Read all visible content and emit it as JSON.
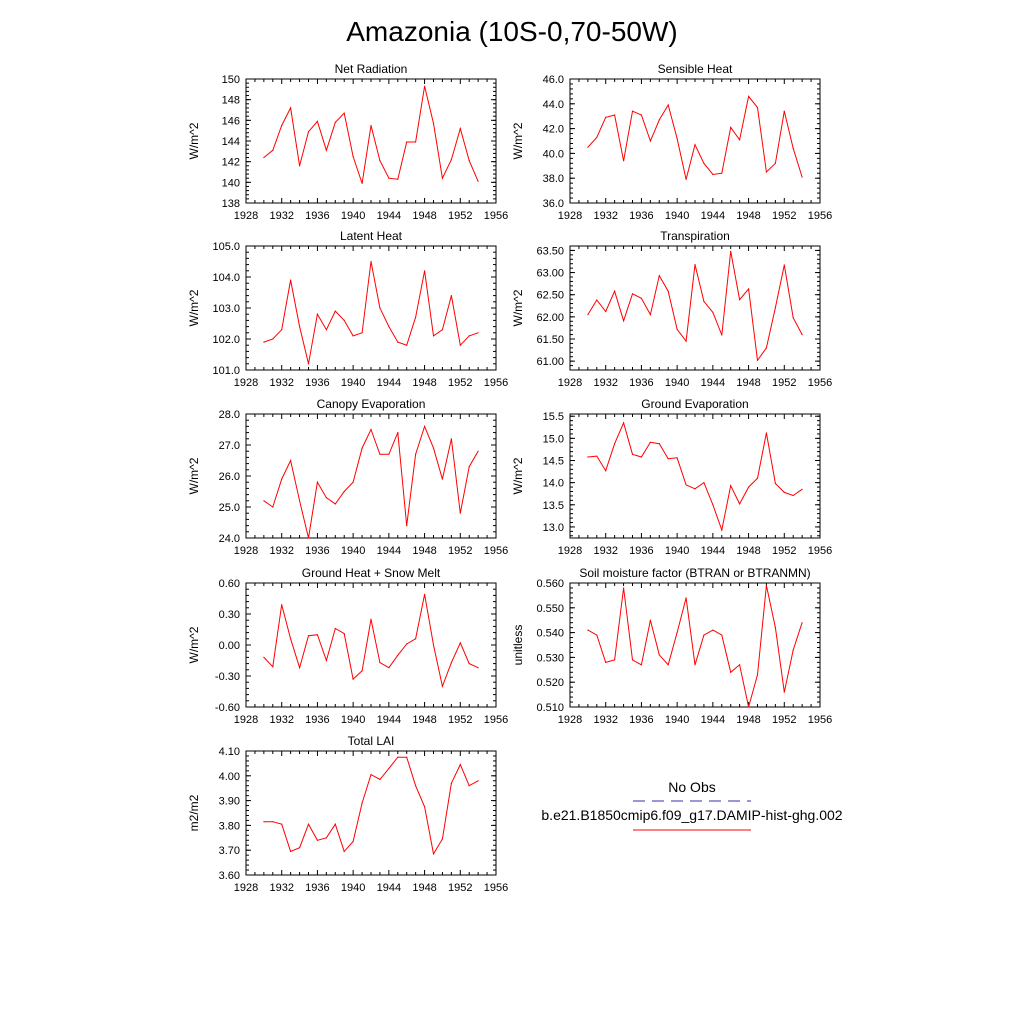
{
  "title": "Amazonia (10S-0,70-50W)",
  "colors": {
    "model": "#ff0000",
    "obs": "#3030b0",
    "axis": "#000000"
  },
  "legend": {
    "obs_label": "No Obs",
    "model_label": "b.e21.B1850cmip6.f09_g17.DAMIP-hist-ghg.002"
  },
  "x_ticks": [
    "1928",
    "1932",
    "1936",
    "1940",
    "1944",
    "1948",
    "1952",
    "1956"
  ],
  "chart_data": [
    {
      "type": "line",
      "title": "Net Radiation",
      "ylabel": "W/m^2",
      "xlim": [
        1928,
        1956
      ],
      "ylim": [
        138,
        150
      ],
      "yticks": [
        "138",
        "140",
        "142",
        "144",
        "146",
        "148",
        "150"
      ],
      "x": [
        1930,
        1931,
        1932,
        1933,
        1934,
        1935,
        1936,
        1937,
        1938,
        1939,
        1940,
        1941,
        1942,
        1943,
        1944,
        1945,
        1946,
        1947,
        1948,
        1949,
        1950,
        1951,
        1952,
        1953,
        1954
      ],
      "series": [
        {
          "values": [
            142.4,
            143.1,
            145.5,
            147.2,
            141.6,
            144.9,
            145.9,
            143.1,
            145.8,
            146.7,
            142.5,
            139.9,
            145.5,
            142.1,
            140.4,
            140.3,
            143.9,
            143.9,
            149.3,
            145.7,
            140.4,
            142.2,
            145.2,
            142.1,
            140.1
          ]
        }
      ]
    },
    {
      "type": "line",
      "title": "Sensible Heat",
      "ylabel": "W/m^2",
      "xlim": [
        1928,
        1956
      ],
      "ylim": [
        36,
        46
      ],
      "yticks": [
        "36.0",
        "38.0",
        "40.0",
        "42.0",
        "44.0",
        "46.0"
      ],
      "x": [
        1930,
        1931,
        1932,
        1933,
        1934,
        1935,
        1936,
        1937,
        1938,
        1939,
        1940,
        1941,
        1942,
        1943,
        1944,
        1945,
        1946,
        1947,
        1948,
        1949,
        1950,
        1951,
        1952,
        1953,
        1954
      ],
      "series": [
        {
          "values": [
            40.5,
            41.3,
            42.9,
            43.1,
            39.4,
            43.4,
            43.1,
            41.0,
            42.7,
            43.9,
            41.2,
            37.9,
            40.7,
            39.2,
            38.3,
            38.4,
            42.1,
            41.1,
            44.6,
            43.7,
            38.5,
            39.2,
            43.4,
            40.4,
            38.1
          ]
        }
      ]
    },
    {
      "type": "line",
      "title": "Latent Heat",
      "ylabel": "W/m^2",
      "xlim": [
        1928,
        1956
      ],
      "ylim": [
        101,
        105
      ],
      "yticks": [
        "101.0",
        "102.0",
        "103.0",
        "104.0",
        "105.0"
      ],
      "x": [
        1930,
        1931,
        1932,
        1933,
        1934,
        1935,
        1936,
        1937,
        1938,
        1939,
        1940,
        1941,
        1942,
        1943,
        1944,
        1945,
        1946,
        1947,
        1948,
        1949,
        1950,
        1951,
        1952,
        1953,
        1954
      ],
      "series": [
        {
          "values": [
            101.9,
            102.0,
            102.3,
            103.9,
            102.4,
            101.2,
            102.8,
            102.3,
            102.9,
            102.6,
            102.1,
            102.2,
            104.5,
            103.0,
            102.4,
            101.9,
            101.8,
            102.7,
            104.2,
            102.1,
            102.3,
            103.4,
            101.8,
            102.1,
            102.2
          ]
        }
      ]
    },
    {
      "type": "line",
      "title": "Transpiration",
      "ylabel": "W/m^2",
      "xlim": [
        1928,
        1956
      ],
      "ylim": [
        60.8,
        63.6
      ],
      "yticks": [
        "61.00",
        "61.50",
        "62.00",
        "62.50",
        "63.00",
        "63.50"
      ],
      "x": [
        1930,
        1931,
        1932,
        1933,
        1934,
        1935,
        1936,
        1937,
        1938,
        1939,
        1940,
        1941,
        1942,
        1943,
        1944,
        1945,
        1946,
        1947,
        1948,
        1949,
        1950,
        1951,
        1952,
        1953,
        1954
      ],
      "series": [
        {
          "values": [
            62.05,
            62.38,
            62.12,
            62.58,
            61.91,
            62.52,
            62.42,
            62.05,
            62.93,
            62.58,
            61.72,
            61.45,
            63.18,
            62.35,
            62.1,
            61.59,
            63.48,
            62.39,
            62.63,
            61.02,
            61.3,
            62.21,
            63.17,
            61.98,
            61.6
          ]
        }
      ]
    },
    {
      "type": "line",
      "title": "Canopy Evaporation",
      "ylabel": "W/m^2",
      "xlim": [
        1928,
        1956
      ],
      "ylim": [
        24,
        28
      ],
      "yticks": [
        "24.0",
        "25.0",
        "26.0",
        "27.0",
        "28.0"
      ],
      "x": [
        1930,
        1931,
        1932,
        1933,
        1934,
        1935,
        1936,
        1937,
        1938,
        1939,
        1940,
        1941,
        1942,
        1943,
        1944,
        1945,
        1946,
        1947,
        1948,
        1949,
        1950,
        1951,
        1952,
        1953,
        1954
      ],
      "series": [
        {
          "values": [
            25.2,
            25.0,
            25.9,
            26.5,
            25.2,
            24.0,
            25.8,
            25.3,
            25.1,
            25.5,
            25.8,
            26.9,
            27.5,
            26.7,
            26.7,
            27.4,
            24.4,
            26.7,
            27.6,
            26.9,
            25.9,
            27.2,
            24.8,
            26.3,
            26.8
          ]
        }
      ]
    },
    {
      "type": "line",
      "title": "Ground Evaporation",
      "ylabel": "W/m^2",
      "xlim": [
        1928,
        1956
      ],
      "ylim": [
        12.75,
        15.55
      ],
      "yticks": [
        "13.0",
        "13.5",
        "14.0",
        "14.5",
        "15.0",
        "15.5"
      ],
      "x": [
        1930,
        1931,
        1932,
        1933,
        1934,
        1935,
        1936,
        1937,
        1938,
        1939,
        1940,
        1941,
        1942,
        1943,
        1944,
        1945,
        1946,
        1947,
        1948,
        1949,
        1950,
        1951,
        1952,
        1953,
        1954
      ],
      "series": [
        {
          "values": [
            14.58,
            14.6,
            14.27,
            14.88,
            15.35,
            14.64,
            14.58,
            14.91,
            14.88,
            14.54,
            14.56,
            13.95,
            13.86,
            14.0,
            13.5,
            12.93,
            13.93,
            13.52,
            13.9,
            14.1,
            15.12,
            13.98,
            13.78,
            13.71,
            13.85
          ]
        }
      ]
    },
    {
      "type": "line",
      "title": "Ground Heat + Snow Melt",
      "ylabel": "W/m^2",
      "xlim": [
        1928,
        1956
      ],
      "ylim": [
        -0.6,
        0.6
      ],
      "yticks": [
        "-0.60",
        "-0.30",
        "0.00",
        "0.30",
        "0.60"
      ],
      "x": [
        1930,
        1931,
        1932,
        1933,
        1934,
        1935,
        1936,
        1937,
        1938,
        1939,
        1940,
        1941,
        1942,
        1943,
        1944,
        1945,
        1946,
        1947,
        1948,
        1949,
        1950,
        1951,
        1952,
        1953,
        1954
      ],
      "series": [
        {
          "values": [
            -0.12,
            -0.21,
            0.39,
            0.06,
            -0.22,
            0.09,
            0.1,
            -0.15,
            0.16,
            0.11,
            -0.33,
            -0.25,
            0.25,
            -0.17,
            -0.22,
            -0.1,
            0.01,
            0.06,
            0.49,
            0.0,
            -0.4,
            -0.17,
            0.02,
            -0.18,
            -0.22
          ]
        }
      ]
    },
    {
      "type": "line",
      "title": "Soil moisture factor (BTRAN or BTRANMN)",
      "ylabel": "unitless",
      "xlim": [
        1928,
        1956
      ],
      "ylim": [
        0.51,
        0.56
      ],
      "yticks": [
        "0.510",
        "0.520",
        "0.530",
        "0.540",
        "0.550",
        "0.560"
      ],
      "x": [
        1930,
        1931,
        1932,
        1933,
        1934,
        1935,
        1936,
        1937,
        1938,
        1939,
        1940,
        1941,
        1942,
        1943,
        1944,
        1945,
        1946,
        1947,
        1948,
        1949,
        1950,
        1951,
        1952,
        1953,
        1954
      ],
      "series": [
        {
          "values": [
            0.541,
            0.539,
            0.528,
            0.529,
            0.558,
            0.529,
            0.527,
            0.545,
            0.531,
            0.527,
            0.54,
            0.554,
            0.527,
            0.539,
            0.541,
            0.539,
            0.524,
            0.527,
            0.51,
            0.523,
            0.559,
            0.542,
            0.516,
            0.533,
            0.544
          ]
        }
      ]
    },
    {
      "type": "line",
      "title": "Total LAI",
      "ylabel": "m2/m2",
      "xlim": [
        1928,
        1956
      ],
      "ylim": [
        3.6,
        4.1
      ],
      "yticks": [
        "3.60",
        "3.70",
        "3.80",
        "3.90",
        "4.00",
        "4.10"
      ],
      "x": [
        1930,
        1931,
        1932,
        1933,
        1934,
        1935,
        1936,
        1937,
        1938,
        1939,
        1940,
        1941,
        1942,
        1943,
        1944,
        1945,
        1946,
        1947,
        1948,
        1949,
        1950,
        1951,
        1952,
        1953,
        1954
      ],
      "series": [
        {
          "values": [
            3.815,
            3.815,
            3.805,
            3.695,
            3.71,
            3.805,
            3.74,
            3.75,
            3.805,
            3.695,
            3.735,
            3.89,
            4.005,
            3.985,
            4.03,
            4.075,
            4.075,
            3.96,
            3.875,
            3.685,
            3.745,
            3.97,
            4.045,
            3.96,
            3.98
          ]
        }
      ]
    }
  ]
}
